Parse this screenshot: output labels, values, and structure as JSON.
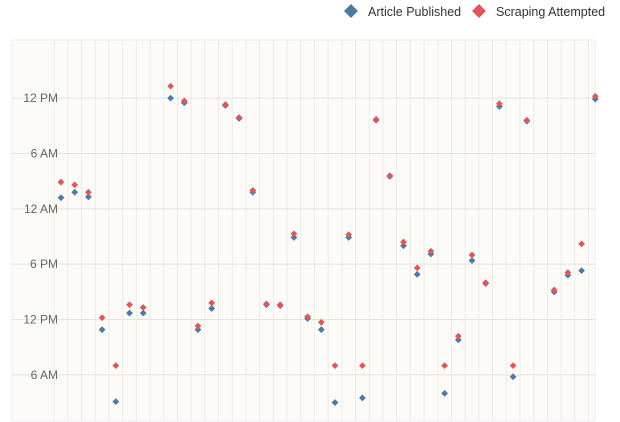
{
  "chart_data": {
    "type": "scatter",
    "title": "",
    "xlabel": "",
    "ylabel": "",
    "y_axis": {
      "unit": "hours (continuous time, newest at top)",
      "ylim": [
        1.0,
        42.3
      ],
      "ticks": [
        {
          "value": 6,
          "label": "6 AM"
        },
        {
          "value": 12,
          "label": "12 PM"
        },
        {
          "value": 18,
          "label": "6 PM"
        },
        {
          "value": 24,
          "label": "12 AM"
        },
        {
          "value": 30,
          "label": "6 AM"
        },
        {
          "value": 36,
          "label": "12 PM"
        }
      ]
    },
    "x_axis": {
      "categories_count": 39,
      "tick_labels": [],
      "grid": true
    },
    "grid": true,
    "legend": {
      "position": "top-right"
    },
    "series": [
      {
        "name": "Article Published",
        "color": "#4E79A7",
        "marker": "diamond",
        "points": [
          {
            "x": 1,
            "y": 25.2
          },
          {
            "x": 2,
            "y": 25.8
          },
          {
            "x": 3,
            "y": 25.3
          },
          {
            "x": 4,
            "y": 10.9
          },
          {
            "x": 5,
            "y": 3.1
          },
          {
            "x": 6,
            "y": 12.7
          },
          {
            "x": 7,
            "y": 12.7
          },
          {
            "x": 9,
            "y": 36.0
          },
          {
            "x": 10,
            "y": 35.5
          },
          {
            "x": 11,
            "y": 10.9
          },
          {
            "x": 12,
            "y": 13.2
          },
          {
            "x": 13,
            "y": 35.2
          },
          {
            "x": 14,
            "y": 33.8
          },
          {
            "x": 15,
            "y": 25.8
          },
          {
            "x": 16,
            "y": 13.6
          },
          {
            "x": 17,
            "y": 13.5
          },
          {
            "x": 18,
            "y": 20.9
          },
          {
            "x": 19,
            "y": 12.1
          },
          {
            "x": 20,
            "y": 10.9
          },
          {
            "x": 21,
            "y": 3.0
          },
          {
            "x": 22,
            "y": 20.9
          },
          {
            "x": 23,
            "y": 3.5
          },
          {
            "x": 24,
            "y": 33.6
          },
          {
            "x": 25,
            "y": 27.5
          },
          {
            "x": 26,
            "y": 20.0
          },
          {
            "x": 27,
            "y": 16.9
          },
          {
            "x": 28,
            "y": 19.1
          },
          {
            "x": 29,
            "y": 4.0
          },
          {
            "x": 30,
            "y": 9.8
          },
          {
            "x": 31,
            "y": 18.4
          },
          {
            "x": 32,
            "y": 15.9
          },
          {
            "x": 33,
            "y": 35.1
          },
          {
            "x": 34,
            "y": 5.8
          },
          {
            "x": 35,
            "y": 33.5
          },
          {
            "x": 37,
            "y": 15.0
          },
          {
            "x": 38,
            "y": 16.8
          },
          {
            "x": 39,
            "y": 17.3
          },
          {
            "x": 40,
            "y": 35.9
          }
        ]
      },
      {
        "name": "Scraping Attempted",
        "color": "#E15759",
        "marker": "diamond",
        "points": [
          {
            "x": 1,
            "y": 26.9
          },
          {
            "x": 2,
            "y": 26.6
          },
          {
            "x": 3,
            "y": 25.8
          },
          {
            "x": 4,
            "y": 12.2
          },
          {
            "x": 5,
            "y": 7.0
          },
          {
            "x": 6,
            "y": 13.6
          },
          {
            "x": 7,
            "y": 13.3
          },
          {
            "x": 9,
            "y": 37.3
          },
          {
            "x": 10,
            "y": 35.7
          },
          {
            "x": 11,
            "y": 11.3
          },
          {
            "x": 12,
            "y": 13.8
          },
          {
            "x": 13,
            "y": 35.3
          },
          {
            "x": 14,
            "y": 33.9
          },
          {
            "x": 15,
            "y": 26.0
          },
          {
            "x": 16,
            "y": 13.7
          },
          {
            "x": 17,
            "y": 13.6
          },
          {
            "x": 18,
            "y": 21.3
          },
          {
            "x": 19,
            "y": 12.3
          },
          {
            "x": 20,
            "y": 11.7
          },
          {
            "x": 21,
            "y": 7.0
          },
          {
            "x": 22,
            "y": 21.2
          },
          {
            "x": 23,
            "y": 7.0
          },
          {
            "x": 24,
            "y": 33.7
          },
          {
            "x": 25,
            "y": 27.6
          },
          {
            "x": 26,
            "y": 20.4
          },
          {
            "x": 27,
            "y": 17.6
          },
          {
            "x": 28,
            "y": 19.4
          },
          {
            "x": 29,
            "y": 7.0
          },
          {
            "x": 30,
            "y": 10.2
          },
          {
            "x": 31,
            "y": 19.0
          },
          {
            "x": 32,
            "y": 16.0
          },
          {
            "x": 33,
            "y": 35.4
          },
          {
            "x": 34,
            "y": 7.0
          },
          {
            "x": 35,
            "y": 33.6
          },
          {
            "x": 37,
            "y": 15.2
          },
          {
            "x": 38,
            "y": 17.1
          },
          {
            "x": 39,
            "y": 20.2
          },
          {
            "x": 40,
            "y": 36.2
          }
        ]
      }
    ]
  }
}
